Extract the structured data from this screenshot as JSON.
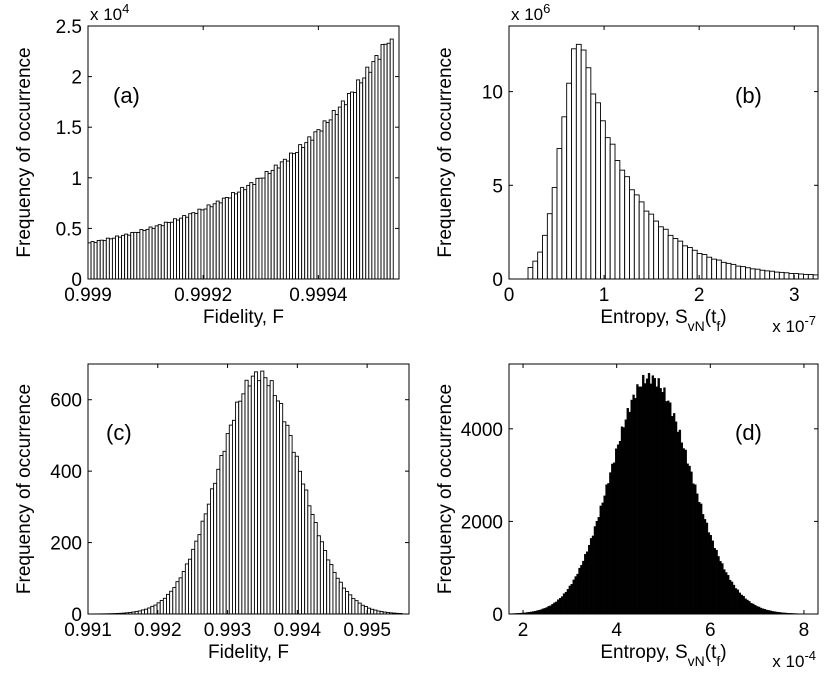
{
  "chart_data": [
    {
      "type": "bar",
      "panel_label": "(a)",
      "xlabel": "Fidelity, F",
      "ylabel": "Frequency of occurrence",
      "y_exponent_base": "x 10",
      "y_exponent_power": "4",
      "xlim": [
        0.999,
        0.99954
      ],
      "ylim": [
        0,
        2.5
      ],
      "x_ticks": [
        0.999,
        0.9992,
        0.9994
      ],
      "x_tick_labels": [
        "0.999",
        "0.9992",
        "0.9994"
      ],
      "y_ticks": [
        0,
        0.5,
        1,
        1.5,
        2,
        2.5
      ],
      "y_tick_labels": [
        "0",
        "0.5",
        "1",
        "1.5",
        "2",
        "2.5"
      ],
      "bar_fill": "#ffffff",
      "distribution": "skewed-left",
      "bin_range": [
        0.999,
        0.99953
      ],
      "bins": 100,
      "peak_x": 0.999525,
      "peak_y": 2.4,
      "left_value": 0.0,
      "width_left": 0.00024,
      "width_right": 1.8e-05,
      "tail": 0.04
    },
    {
      "type": "bar",
      "panel_label": "(b)",
      "xlabel": "Entropy, S",
      "xlabel_sub": "vN",
      "xlabel_tail": "(t",
      "xlabel_tail_sub": "f",
      "xlabel_end": ")",
      "ylabel": "Frequency of occurrence",
      "y_exponent_base": "x 10",
      "y_exponent_power": "6",
      "x_exponent_base": "x 10",
      "x_exponent_power": "-7",
      "xlim": [
        0,
        3.25
      ],
      "ylim": [
        0,
        13.5
      ],
      "x_ticks": [
        0,
        1,
        2,
        3
      ],
      "x_tick_labels": [
        "0",
        "1",
        "2",
        "3"
      ],
      "y_ticks": [
        0,
        5,
        10
      ],
      "y_tick_labels": [
        "0",
        "5",
        "10"
      ],
      "bar_fill": "#ffffff",
      "distribution": "skewed-right",
      "bin_range": [
        0.2,
        3.25
      ],
      "bins": 60,
      "peak_x": 0.76,
      "peak_y": 12.9,
      "width_left": 0.2,
      "width_right": 0.55,
      "tail": 0.02
    },
    {
      "type": "bar",
      "panel_label": "(c)",
      "xlabel": "Fidelity, F",
      "ylabel": "Frequency of occurrence",
      "xlim": [
        0.991,
        0.9956
      ],
      "ylim": [
        0,
        700
      ],
      "x_ticks": [
        0.991,
        0.992,
        0.993,
        0.994,
        0.995
      ],
      "x_tick_labels": [
        "0.991",
        "0.992",
        "0.993",
        "0.994",
        "0.995"
      ],
      "y_ticks": [
        0,
        200,
        400,
        600
      ],
      "y_tick_labels": [
        "0",
        "200",
        "400",
        "600"
      ],
      "bar_fill": "#ffffff",
      "distribution": "gaussian",
      "bin_range": [
        0.991,
        0.9955
      ],
      "bins": 100,
      "peak_x": 0.99345,
      "peak_y": 670,
      "width_left": 0.00058,
      "width_right": 0.00058,
      "tail": 0.0
    },
    {
      "type": "bar",
      "panel_label": "(d)",
      "xlabel": "Entropy, S",
      "xlabel_sub": "vN",
      "xlabel_tail": "(t",
      "xlabel_tail_sub": "f",
      "xlabel_end": ")",
      "ylabel": "Frequency of occurrence",
      "x_exponent_base": "x 10",
      "x_exponent_power": "-4",
      "xlim": [
        1.7,
        8.3
      ],
      "ylim": [
        0,
        5400
      ],
      "x_ticks": [
        2,
        4,
        6,
        8
      ],
      "x_tick_labels": [
        "2",
        "4",
        "6",
        "8"
      ],
      "y_ticks": [
        0,
        2000,
        4000
      ],
      "y_tick_labels": [
        "0",
        "2000",
        "4000"
      ],
      "bar_fill": "#000000",
      "distribution": "gaussian",
      "bin_range": [
        1.7,
        8.3
      ],
      "bins": 160,
      "peak_x": 4.7,
      "peak_y": 5100,
      "width_left": 0.82,
      "width_right": 0.88,
      "tail": 0.0
    }
  ]
}
